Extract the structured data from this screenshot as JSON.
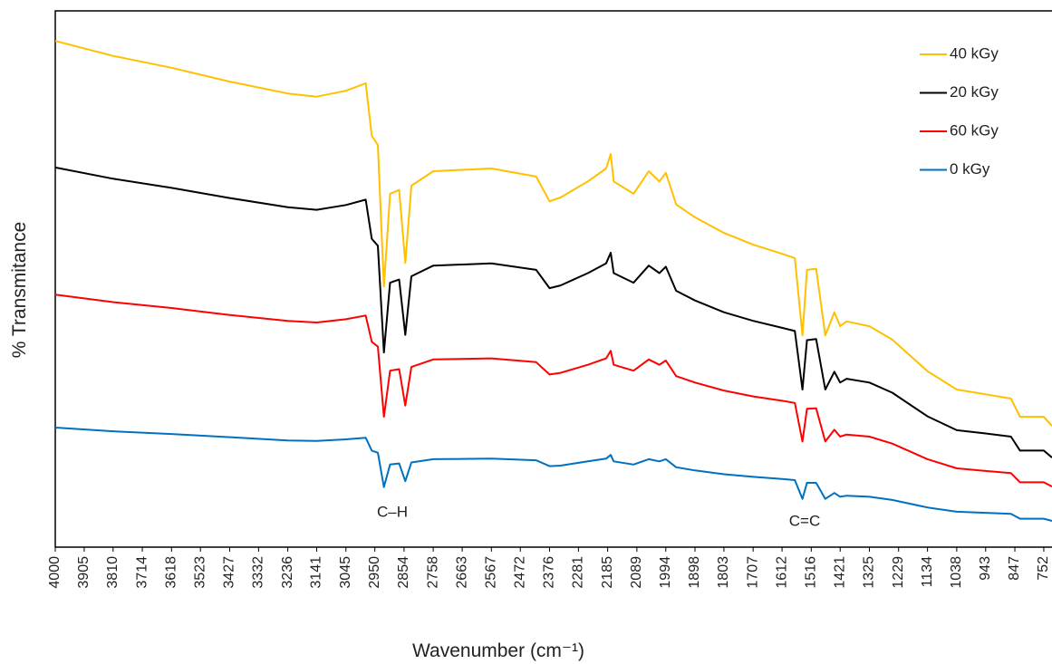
{
  "chart_data": {
    "type": "line",
    "xlabel": "Wavenumber (cm⁻¹)",
    "ylabel": "% Transmitance",
    "annotations": [
      "C–H",
      "C=C"
    ],
    "x": [
      4000,
      3810,
      3618,
      3427,
      3236,
      3141,
      3045,
      2980,
      2960,
      2940,
      2920,
      2900,
      2870,
      2850,
      2830,
      2758,
      2567,
      2420,
      2376,
      2340,
      2250,
      2190,
      2175,
      2165,
      2100,
      2050,
      2015,
      1994,
      1960,
      1898,
      1803,
      1707,
      1612,
      1570,
      1545,
      1530,
      1500,
      1470,
      1440,
      1421,
      1400,
      1325,
      1250,
      1134,
      1038,
      943,
      860,
      830,
      752,
      725
    ],
    "series": [
      {
        "name": "40 kGy",
        "color": "#ffc000",
        "values": [
          94.4,
          91.6,
          89.4,
          86.8,
          84.6,
          84.0,
          85.1,
          86.5,
          76.7,
          75.0,
          48.6,
          65.9,
          66.6,
          53.0,
          67.4,
          70.1,
          70.6,
          69.1,
          64.5,
          65.2,
          68.2,
          70.6,
          73.3,
          68.2,
          65.9,
          70.1,
          68.2,
          69.8,
          63.9,
          61.5,
          58.6,
          56.4,
          54.7,
          53.9,
          39.5,
          51.7,
          51.9,
          39.5,
          43.8,
          41.2,
          42.1,
          41.2,
          38.7,
          32.8,
          29.4,
          28.5,
          27.7,
          24.3,
          24.3,
          22.6
        ]
      },
      {
        "name": "20 kGy",
        "color": "#000000",
        "values": [
          70.8,
          68.7,
          67.0,
          65.1,
          63.4,
          62.9,
          63.8,
          64.8,
          57.5,
          56.2,
          36.3,
          49.3,
          49.9,
          39.6,
          50.5,
          52.5,
          52.9,
          51.7,
          48.3,
          48.8,
          51.1,
          52.9,
          54.9,
          51.1,
          49.3,
          52.5,
          51.1,
          52.3,
          47.8,
          46.0,
          43.8,
          42.2,
          40.9,
          40.3,
          29.4,
          38.6,
          38.8,
          29.4,
          32.7,
          30.7,
          31.4,
          30.7,
          28.8,
          24.4,
          21.8,
          21.2,
          20.6,
          18.0,
          18.0,
          16.7
        ]
      },
      {
        "name": "60 kGy",
        "color": "#ff0000",
        "values": [
          47.1,
          45.7,
          44.6,
          43.3,
          42.2,
          41.9,
          42.5,
          43.2,
          38.3,
          37.4,
          24.3,
          32.9,
          33.2,
          26.4,
          33.6,
          35.0,
          35.2,
          34.5,
          32.2,
          32.5,
          34.0,
          35.2,
          36.6,
          34.0,
          32.9,
          35.0,
          34.0,
          34.8,
          31.9,
          30.7,
          29.2,
          28.1,
          27.3,
          26.9,
          19.7,
          25.8,
          25.9,
          19.7,
          21.9,
          20.6,
          21.0,
          20.6,
          19.3,
          16.4,
          14.7,
          14.2,
          13.8,
          12.1,
          12.1,
          11.3
        ]
      },
      {
        "name": "0 kGy",
        "color": "#0070c0",
        "values": [
          22.3,
          21.6,
          21.1,
          20.5,
          19.9,
          19.8,
          20.1,
          20.4,
          18.0,
          17.6,
          11.2,
          15.4,
          15.6,
          12.3,
          15.8,
          16.4,
          16.5,
          16.2,
          15.1,
          15.2,
          16.0,
          16.5,
          17.2,
          16.0,
          15.4,
          16.4,
          16.0,
          16.4,
          14.9,
          14.3,
          13.6,
          13.1,
          12.7,
          12.5,
          9.0,
          12.0,
          12.0,
          9.0,
          10.1,
          9.4,
          9.6,
          9.4,
          8.8,
          7.4,
          6.6,
          6.4,
          6.2,
          5.3,
          5.3,
          4.9
        ]
      }
    ],
    "xlim": [
      4000,
      725
    ],
    "xticks": [
      4000,
      3905,
      3810,
      3714,
      3618,
      3523,
      3427,
      3332,
      3236,
      3141,
      3045,
      2950,
      2854,
      2758,
      2663,
      2567,
      2472,
      2376,
      2281,
      2185,
      2089,
      1994,
      1898,
      1803,
      1707,
      1612,
      1516,
      1421,
      1325,
      1229,
      1134,
      1038,
      943,
      847,
      752
    ],
    "ylim": [
      0,
      100
    ],
    "legend": "upper right"
  }
}
